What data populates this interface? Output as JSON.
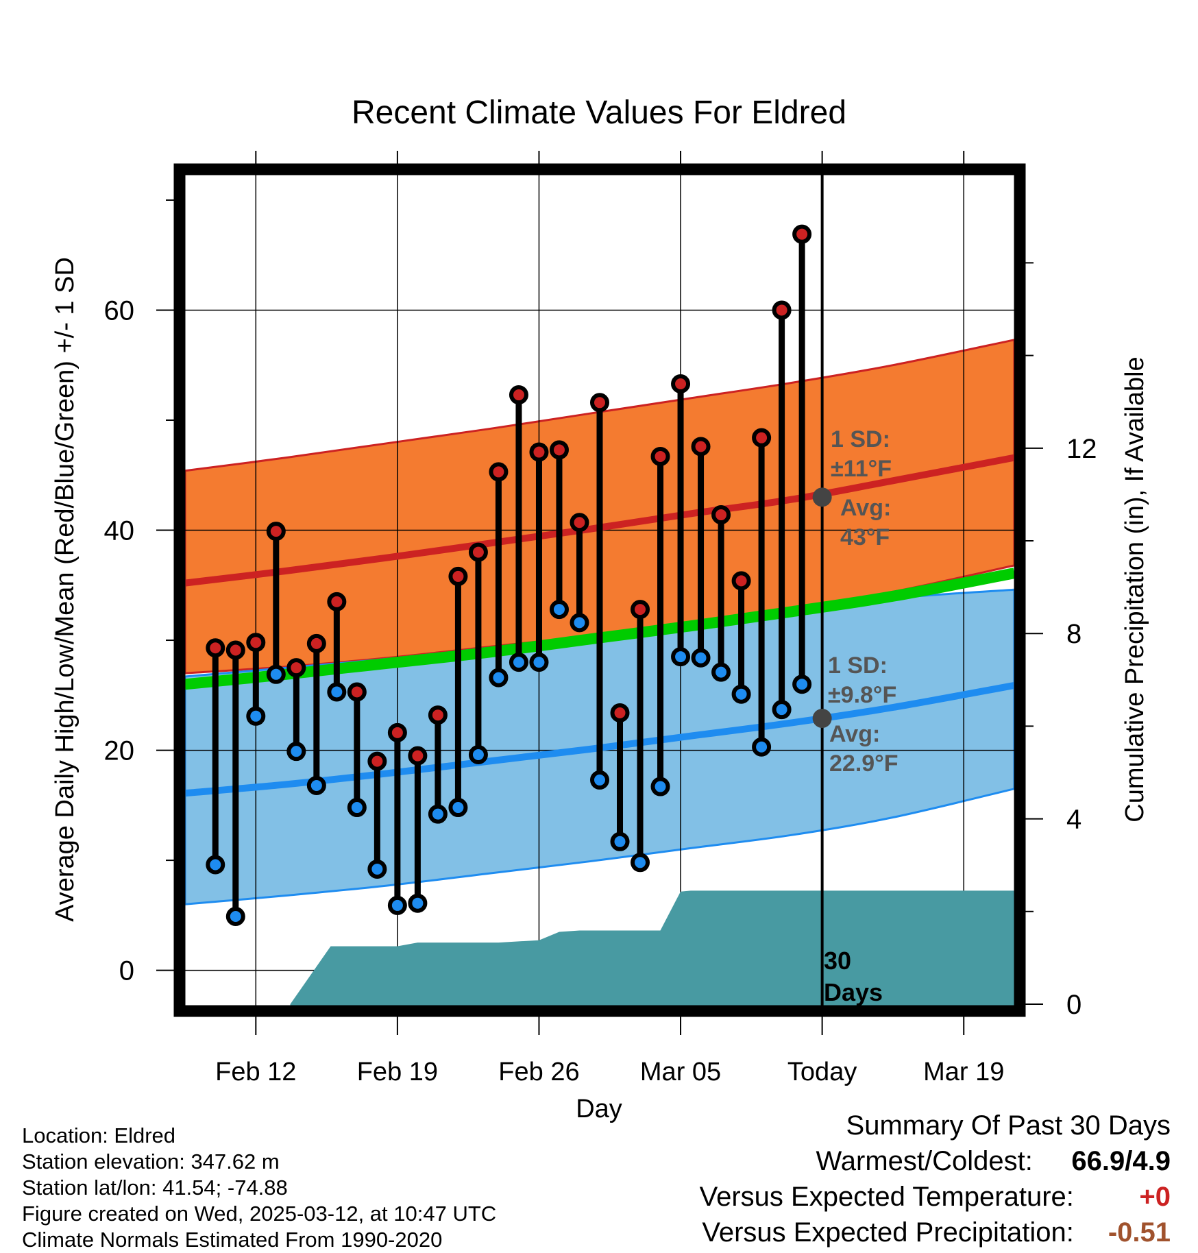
{
  "chart_data": {
    "type": "line",
    "title": "Recent Climate Values For Eldred",
    "xlabel": "Day",
    "ylabel": "Average Daily High/Low/Mean (Red/Blue/Green) +/- 1 SD",
    "y2label": "Cumulative Precipitation (in), If Available",
    "x_tick_labels": [
      "Feb 12",
      "Feb 19",
      "Feb 26",
      "Mar 05",
      "Today",
      "Mar 19"
    ],
    "x_tick_days": [
      -28,
      -21,
      -14,
      -7,
      0,
      7
    ],
    "x_range_days": [
      -31.5,
      9.5
    ],
    "ylim": [
      -3.2,
      72.3
    ],
    "yticks": [
      0,
      20,
      40,
      60
    ],
    "y2lim": [
      -0.03,
      17.9
    ],
    "y2ticks": [
      0,
      4,
      8,
      12
    ],
    "grid": true,
    "today_day": 0,
    "colors": {
      "high_band": "#f47b30",
      "high_mean_line": "#cc2222",
      "low_band": "#82c0e6",
      "low_mean_line": "#1e8cf0",
      "mean_line": "#00cc00",
      "precip": "#489aa2",
      "high_point": "#cc2222",
      "low_point": "#1e8cf0",
      "avg_marker": "#444444",
      "annotation_text": "#555555"
    },
    "normals": {
      "days": [
        -31.5,
        -26.5,
        -21.5,
        -16.5,
        -11.5,
        -6.5,
        -1.5,
        3.5,
        9.5
      ],
      "high_mean": [
        35.2,
        36.3,
        37.5,
        38.8,
        40.1,
        41.5,
        42.8,
        44.5,
        46.6
      ],
      "high_upper": [
        45.4,
        46.6,
        47.9,
        49.2,
        50.6,
        52.0,
        53.4,
        55.0,
        57.3
      ],
      "high_lower": [
        27.0,
        27.6,
        28.4,
        29.4,
        30.4,
        31.6,
        32.9,
        34.4,
        36.8
      ],
      "mean": [
        26.0,
        26.9,
        27.9,
        28.9,
        30.1,
        31.3,
        32.6,
        34.0,
        36.1
      ],
      "low_mean": [
        16.1,
        16.9,
        17.9,
        19.0,
        20.1,
        21.3,
        22.5,
        23.9,
        25.9
      ],
      "low_upper": [
        26.7,
        27.5,
        28.3,
        29.3,
        30.3,
        31.3,
        32.5,
        33.8,
        34.6
      ],
      "low_lower": [
        6.0,
        6.8,
        7.7,
        8.8,
        9.9,
        11.1,
        12.3,
        13.9,
        16.5
      ]
    },
    "days": [
      -30,
      -29,
      -28,
      -27,
      -26,
      -25,
      -24,
      -23,
      -22,
      -21,
      -20,
      -19,
      -18,
      -17,
      -16,
      -15,
      -14,
      -13,
      -12,
      -11,
      -10,
      -9,
      -8,
      -7,
      -6,
      -5,
      -4,
      -3,
      -2,
      -1
    ],
    "highs": [
      29.3,
      29.1,
      29.8,
      39.9,
      27.5,
      29.7,
      33.5,
      25.3,
      19.0,
      21.6,
      19.5,
      23.2,
      35.8,
      38.0,
      45.3,
      52.3,
      47.1,
      47.3,
      40.7,
      51.6,
      23.4,
      32.8,
      46.7,
      53.3,
      47.6,
      41.4,
      35.4,
      48.4,
      60.0,
      66.9
    ],
    "lows": [
      9.6,
      4.9,
      23.1,
      26.9,
      19.9,
      16.8,
      25.3,
      14.8,
      9.2,
      5.9,
      6.1,
      14.2,
      14.8,
      19.6,
      26.6,
      28.0,
      28.0,
      32.8,
      31.6,
      17.3,
      11.7,
      9.8,
      16.7,
      28.5,
      28.4,
      27.1,
      25.1,
      20.3,
      23.7,
      26.0
    ],
    "precip_cumulative": {
      "days": [
        -26.3,
        -24.3,
        -21.0,
        -20.0,
        -16.0,
        -14.0,
        -13.0,
        -12.0,
        -10.0,
        -8.0,
        -7.0,
        -6.5,
        9.5
      ],
      "values": [
        0.0,
        1.25,
        1.25,
        1.33,
        1.33,
        1.38,
        1.56,
        1.59,
        1.59,
        1.59,
        2.43,
        2.45,
        2.45
      ]
    }
  },
  "annotations": {
    "high_sd_label": "1 SD:",
    "high_sd_value": "±11°F",
    "high_avg_label": "Avg:",
    "high_avg_value": "43°F",
    "high_avg_marker_value": 43,
    "low_sd_label": "1 SD:",
    "low_sd_value": "±9.8°F",
    "low_avg_label": "Avg:",
    "low_avg_value": "22.9°F",
    "low_avg_marker_value": 22.9,
    "precip_period_1": "30",
    "precip_period_2": "Days"
  },
  "info": {
    "location": "Location: Eldred",
    "elevation": "Station elevation: 347.62 m",
    "latlon": "Station lat/lon: 41.54; -74.88",
    "created": "Figure created on Wed, 2025-03-12, at 10:47 UTC",
    "normals": "Climate Normals Estimated From 1990-2020"
  },
  "summary": {
    "title": "Summary Of Past 30 Days",
    "warmest_label": "Warmest/Coldest:",
    "warmest_value": "66.9/4.9",
    "temp_label": "Versus Expected Temperature:",
    "temp_value": "+0",
    "temp_color": "#cc2222",
    "precip_label": "Versus Expected Precipitation:",
    "precip_value": "-0.51",
    "precip_color": "#a0522d"
  }
}
